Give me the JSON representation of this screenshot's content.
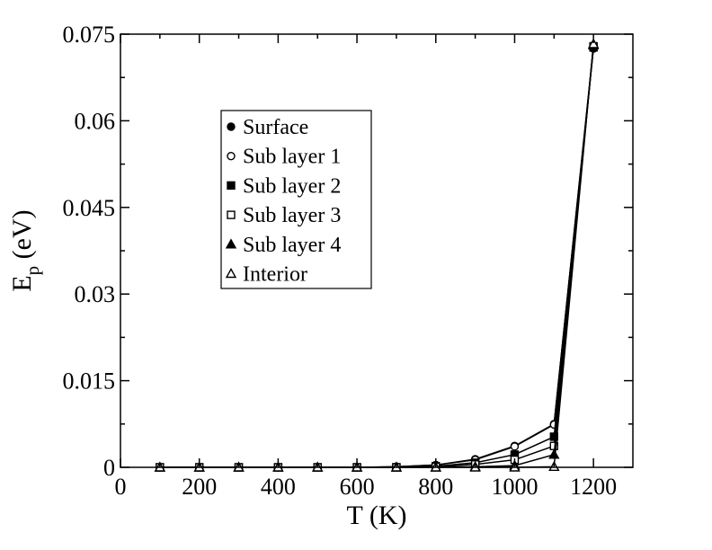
{
  "chart_data": {
    "type": "line",
    "title": "",
    "xlabel": "T (K)",
    "ylabel_main": "E",
    "ylabel_sub": "p",
    "ylabel_unit": " (eV)",
    "xlim": [
      0,
      1300
    ],
    "ylim": [
      0,
      0.075
    ],
    "xticks": [
      0,
      200,
      400,
      600,
      800,
      1000,
      1200
    ],
    "xtick_labels": [
      "0",
      "200",
      "400",
      "600",
      "800",
      "1000",
      "1200"
    ],
    "yticks": [
      0,
      0.015,
      0.03,
      0.045,
      0.06,
      0.075
    ],
    "ytick_labels": [
      "0",
      "0.015",
      "0.03",
      "0.045",
      "0.06",
      "0.075"
    ],
    "grid": false,
    "legend_position": "upper-left",
    "x": [
      100,
      200,
      300,
      400,
      500,
      600,
      700,
      800,
      900,
      1000,
      1100,
      1200
    ],
    "series": [
      {
        "name": "Surface",
        "marker": "filled-circle",
        "values": [
          0,
          0,
          0,
          0,
          0,
          0,
          0.0001,
          0.0004,
          0.0014,
          0.0037,
          0.0075,
          0.0725
        ]
      },
      {
        "name": "Sub layer 1",
        "marker": "open-circle",
        "values": [
          0,
          0,
          0,
          0,
          0,
          0,
          0.0001,
          0.0004,
          0.0013,
          0.0036,
          0.0074,
          0.0728
        ]
      },
      {
        "name": "Sub layer 2",
        "marker": "filled-square",
        "values": [
          0,
          0,
          0,
          0,
          0,
          0,
          0,
          0.0002,
          0.0008,
          0.0022,
          0.0053,
          0.0727
        ]
      },
      {
        "name": "Sub layer 3",
        "marker": "open-square",
        "values": [
          0,
          0,
          0,
          0,
          0,
          0,
          0,
          0.0001,
          0.0005,
          0.0013,
          0.0037,
          0.0729
        ]
      },
      {
        "name": "Sub layer 4",
        "marker": "filled-triangle",
        "values": [
          0,
          0,
          0,
          0,
          0,
          0,
          0,
          0,
          0.0001,
          0.0003,
          0.0022,
          0.0731
        ]
      },
      {
        "name": "Interior",
        "marker": "open-triangle",
        "values": [
          0,
          0,
          0,
          0,
          0,
          0,
          0,
          0,
          0,
          0,
          0.0001,
          0.0733
        ]
      }
    ]
  }
}
